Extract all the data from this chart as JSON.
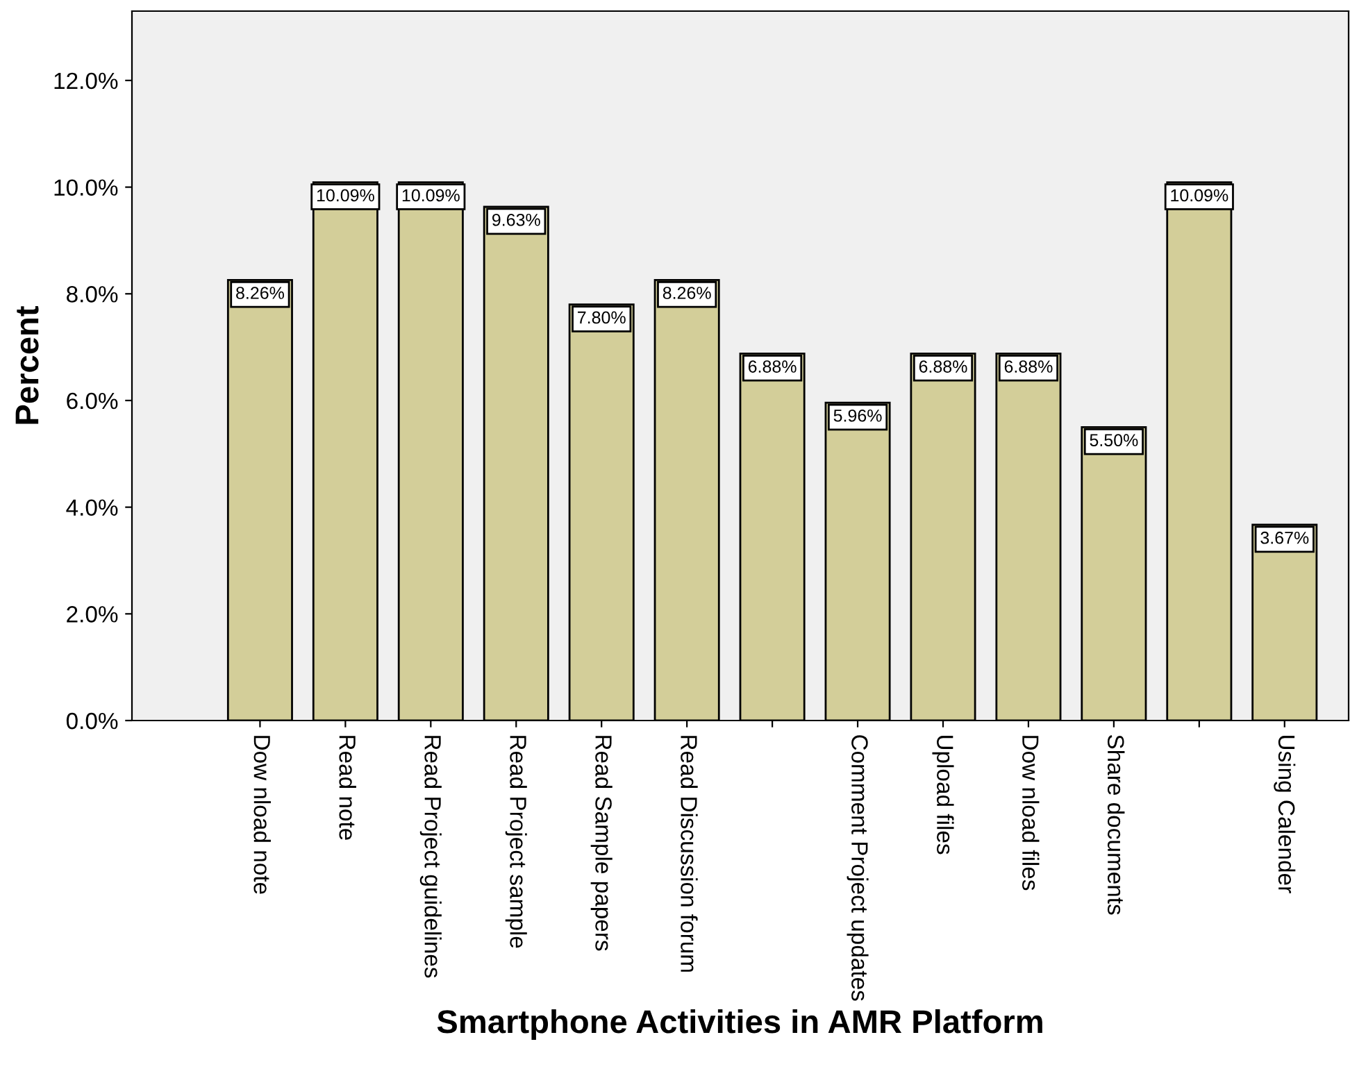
{
  "chart_data": {
    "type": "bar",
    "xlabel": "Smartphone Activities in AMR Platform",
    "ylabel": "Percent",
    "categories": [
      "Dow nload note",
      "Read note",
      "Read Project guidelines",
      "Read Project sample",
      "Read Sample papers",
      "Read Discussion forum",
      null,
      "Comment Project updates",
      "Upload files",
      "Dow nload files",
      "Share documents",
      null,
      "Using Calender"
    ],
    "values": [
      8.26,
      10.09,
      10.09,
      9.63,
      7.8,
      8.26,
      6.88,
      5.96,
      6.88,
      6.88,
      5.5,
      10.09,
      3.67
    ],
    "value_labels": [
      "8.26%",
      "10.09%",
      "10.09%",
      "9.63%",
      "7.80%",
      "8.26%",
      "6.88%",
      "5.96%",
      "6.88%",
      "6.88%",
      "5.50%",
      "10.09%",
      "3.67%"
    ],
    "color": "#d3ce99",
    "ylim": [
      0,
      13.3
    ],
    "yticks": [
      {
        "value": 0,
        "label": "0.0%"
      },
      {
        "value": 2,
        "label": "2.0%"
      },
      {
        "value": 4,
        "label": "4.0%"
      },
      {
        "value": 6,
        "label": "6.0%"
      },
      {
        "value": 8,
        "label": "8.0%"
      },
      {
        "value": 10,
        "label": "10.0%"
      },
      {
        "value": 12,
        "label": "12.0%"
      }
    ],
    "grid": false,
    "legend": false
  }
}
